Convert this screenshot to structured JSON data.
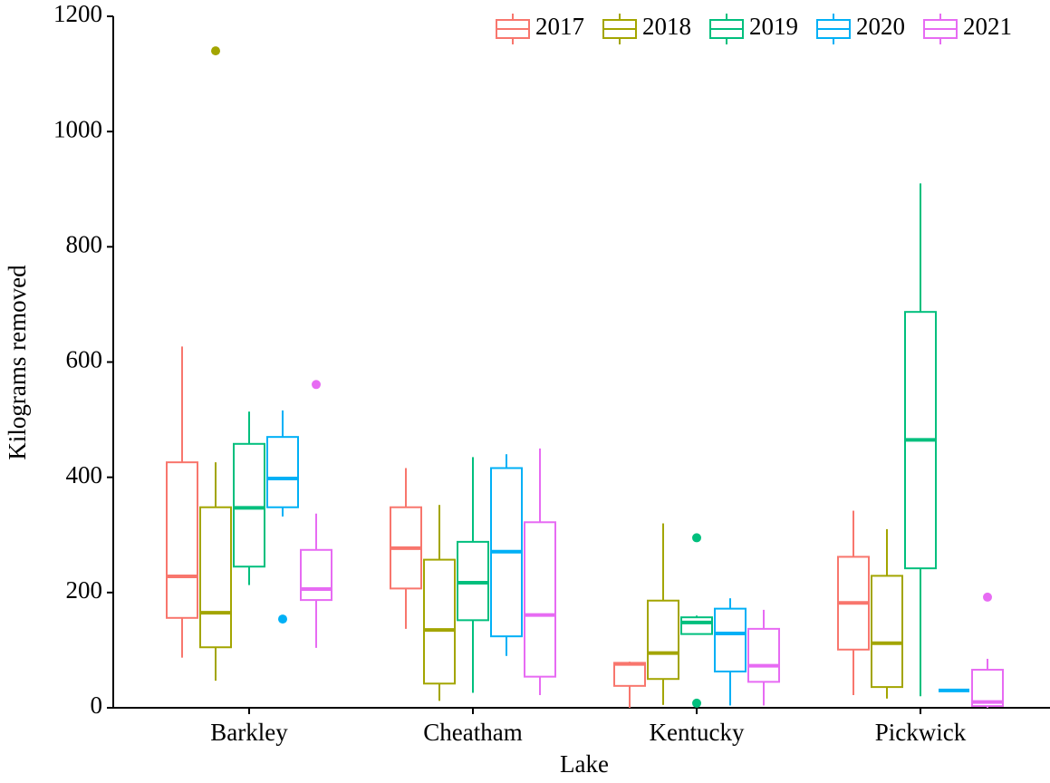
{
  "chart_data": {
    "type": "boxplot",
    "xlabel": "Lake",
    "ylabel": "Kilograms removed",
    "categories": [
      "Barkley",
      "Cheatham",
      "Kentucky",
      "Pickwick"
    ],
    "ylim": [
      0,
      1200
    ],
    "yticks": [
      0,
      200,
      400,
      600,
      800,
      1000,
      1200
    ],
    "legend": "top-right",
    "series": [
      {
        "name": "2017",
        "color": "#F8766D",
        "values": [
          {
            "low": 87,
            "q1": 156,
            "median": 228,
            "q3": 426,
            "high": 627,
            "outliers": []
          },
          {
            "low": 137,
            "q1": 207,
            "median": 277,
            "q3": 348,
            "high": 416,
            "outliers": []
          },
          {
            "low": 0,
            "q1": 38,
            "median": 76,
            "q3": 78,
            "high": 80,
            "outliers": []
          },
          {
            "low": 22,
            "q1": 101,
            "median": 182,
            "q3": 262,
            "high": 342,
            "outliers": []
          }
        ]
      },
      {
        "name": "2018",
        "color": "#A3A500",
        "values": [
          {
            "low": 47,
            "q1": 105,
            "median": 165,
            "q3": 348,
            "high": 426,
            "outliers": [
              1140
            ]
          },
          {
            "low": 12,
            "q1": 42,
            "median": 135,
            "q3": 257,
            "high": 352,
            "outliers": []
          },
          {
            "low": 5,
            "q1": 50,
            "median": 95,
            "q3": 186,
            "high": 320,
            "outliers": []
          },
          {
            "low": 16,
            "q1": 36,
            "median": 112,
            "q3": 229,
            "high": 310,
            "outliers": []
          }
        ]
      },
      {
        "name": "2019",
        "color": "#00BF7D",
        "values": [
          {
            "low": 213,
            "q1": 245,
            "median": 347,
            "q3": 458,
            "high": 514,
            "outliers": []
          },
          {
            "low": 26,
            "q1": 152,
            "median": 217,
            "q3": 288,
            "high": 435,
            "outliers": []
          },
          {
            "low": 128,
            "q1": 128,
            "median": 148,
            "q3": 157,
            "high": 160,
            "outliers": [
              295,
              8
            ]
          },
          {
            "low": 20,
            "q1": 242,
            "median": 465,
            "q3": 687,
            "high": 910,
            "outliers": []
          }
        ]
      },
      {
        "name": "2020",
        "color": "#00B0F6",
        "values": [
          {
            "low": 332,
            "q1": 348,
            "median": 398,
            "q3": 470,
            "high": 516,
            "outliers": [
              154
            ]
          },
          {
            "low": 90,
            "q1": 124,
            "median": 271,
            "q3": 416,
            "high": 440,
            "outliers": []
          },
          {
            "low": 4,
            "q1": 63,
            "median": 129,
            "q3": 172,
            "high": 190,
            "outliers": []
          },
          {
            "low": 30,
            "q1": 30,
            "median": 30,
            "q3": 30,
            "high": 30,
            "outliers": []
          }
        ]
      },
      {
        "name": "2021",
        "color": "#E76BF3",
        "values": [
          {
            "low": 104,
            "q1": 187,
            "median": 206,
            "q3": 274,
            "high": 337,
            "outliers": [
              561
            ]
          },
          {
            "low": 22,
            "q1": 54,
            "median": 161,
            "q3": 322,
            "high": 450,
            "outliers": []
          },
          {
            "low": 4,
            "q1": 45,
            "median": 73,
            "q3": 137,
            "high": 170,
            "outliers": []
          },
          {
            "low": 0,
            "q1": 3,
            "median": 10,
            "q3": 66,
            "high": 85,
            "outliers": [
              192
            ]
          }
        ]
      }
    ]
  }
}
